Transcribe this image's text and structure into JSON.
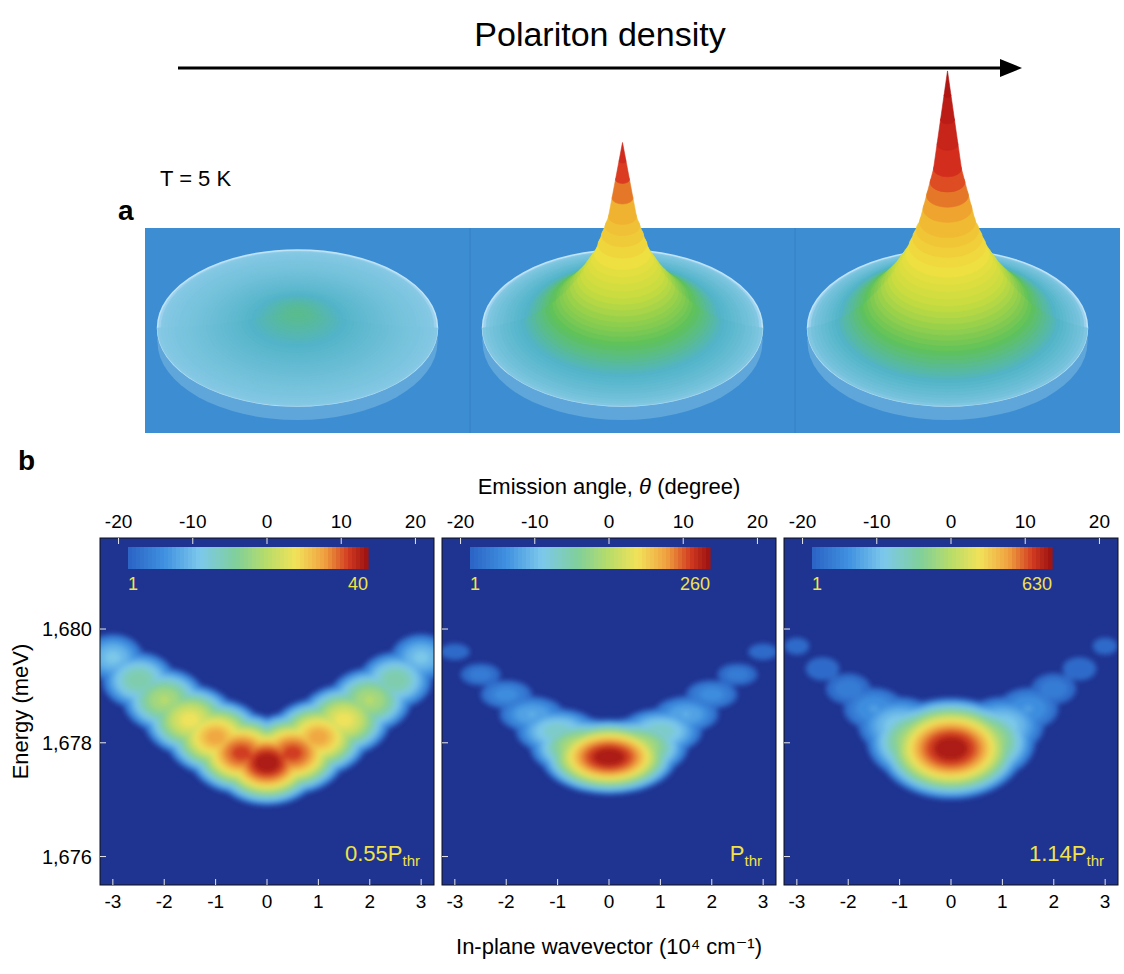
{
  "header": {
    "title": "Polariton density"
  },
  "panels": {
    "a": {
      "label": "a",
      "annotation": "T = 5 K"
    },
    "b": {
      "label": "b",
      "xlabel": "In-plane wavevector (10⁴ cm⁻¹)",
      "x2label": "Emission angle, θ (degree)",
      "ylabel": "Energy (meV)"
    }
  },
  "chart_data": [
    {
      "type": "surface",
      "x": [
        0,
        0.1,
        0.2,
        0.3,
        0.4,
        0.5,
        0.6,
        0.7,
        0.8,
        0.9,
        1
      ],
      "xlim": [
        0,
        1
      ],
      "zlim": [
        0,
        100
      ],
      "series": [
        {
          "values": [
            6,
            5.5,
            4.5,
            3.5,
            2.5,
            1.8,
            1.2,
            0.7,
            0.4,
            0.2,
            0
          ]
        },
        {
          "values": [
            70,
            42,
            28,
            20,
            14,
            9.5,
            6,
            3.5,
            2,
            0.8,
            0
          ]
        },
        {
          "values": [
            97,
            60,
            40,
            28,
            20,
            14,
            9,
            5.5,
            3,
            1.2,
            0
          ]
        }
      ]
    },
    {
      "type": "heatmap",
      "x": [
        -3,
        -2.5,
        -2,
        -1.5,
        -1,
        -0.5,
        0,
        0.5,
        1,
        1.5,
        2,
        2.5,
        3
      ],
      "values": [
        1679.5,
        1679.1,
        1678.75,
        1678.4,
        1678.1,
        1677.82,
        1677.65,
        1677.82,
        1678.1,
        1678.4,
        1678.75,
        1679.1,
        1679.5
      ],
      "intensity": [
        3,
        5,
        8,
        13,
        20,
        30,
        40,
        30,
        20,
        13,
        8,
        5,
        3
      ],
      "energy_width": 0.28,
      "xlim": [
        -3.25,
        3.25
      ],
      "xticks": [
        -3,
        -2,
        -1,
        0,
        1,
        2,
        3
      ],
      "x2lim": [
        -22.5,
        22.5
      ],
      "x2ticks": [
        -20,
        -10,
        0,
        10,
        20
      ],
      "ylim": [
        1675.5,
        1681.6
      ],
      "yticks": [
        {
          "value": 1676,
          "label": "1,676"
        },
        {
          "value": 1678,
          "label": "1,678"
        },
        {
          "value": 1680,
          "label": "1,680"
        }
      ],
      "colorbar": {
        "range": [
          1,
          40
        ],
        "ticks": [
          1,
          40
        ]
      },
      "annotation": {
        "text": "0.55P",
        "subscript": "thr"
      }
    },
    {
      "type": "heatmap",
      "x": [
        -3,
        -2.5,
        -2,
        -1.5,
        -1,
        -0.5,
        0,
        0.5,
        1,
        1.5,
        2,
        2.5,
        3
      ],
      "values": [
        1679.6,
        1679.2,
        1678.85,
        1678.5,
        1678.2,
        1677.92,
        1677.75,
        1677.92,
        1678.2,
        1678.5,
        1678.85,
        1679.2,
        1679.6
      ],
      "intensity": [
        1.3,
        1.6,
        2.2,
        3.5,
        8,
        30,
        260,
        30,
        8,
        3.5,
        2.2,
        1.6,
        1.3
      ],
      "energy_width": 0.2,
      "xlim": [
        -3.25,
        3.25
      ],
      "xticks": [
        -3,
        -2,
        -1,
        0,
        1,
        2,
        3
      ],
      "x2lim": [
        -22.5,
        22.5
      ],
      "x2ticks": [
        -20,
        -10,
        0,
        10,
        20
      ],
      "ylim": [
        1675.5,
        1681.6
      ],
      "yticks": [
        {
          "value": 1676,
          "label": "1,676"
        },
        {
          "value": 1678,
          "label": "1,678"
        },
        {
          "value": 1680,
          "label": "1,680"
        }
      ],
      "tick_labels": "x",
      "colorbar": {
        "range": [
          1,
          260
        ],
        "ticks": [
          1,
          260
        ]
      },
      "annotation": {
        "text": "P",
        "subscript": "thr"
      }
    },
    {
      "type": "heatmap",
      "x": [
        -3,
        -2.5,
        -2,
        -1.5,
        -1,
        -0.5,
        0,
        0.5,
        1,
        1.5,
        2,
        2.5,
        3
      ],
      "values": [
        1679.7,
        1679.3,
        1678.95,
        1678.6,
        1678.3,
        1678.02,
        1677.9,
        1678.02,
        1678.3,
        1678.6,
        1678.95,
        1679.3,
        1679.7
      ],
      "intensity": [
        1.2,
        1.4,
        1.8,
        3,
        8,
        60,
        630,
        60,
        8,
        3,
        1.8,
        1.4,
        1.2
      ],
      "energy_width": 0.25,
      "xlim": [
        -3.25,
        3.25
      ],
      "xticks": [
        -3,
        -2,
        -1,
        0,
        1,
        2,
        3
      ],
      "x2lim": [
        -22.5,
        22.5
      ],
      "x2ticks": [
        -20,
        -10,
        0,
        10,
        20
      ],
      "ylim": [
        1675.5,
        1681.6
      ],
      "yticks": [
        {
          "value": 1676,
          "label": "1,676"
        },
        {
          "value": 1678,
          "label": "1,678"
        },
        {
          "value": 1680,
          "label": "1,680"
        }
      ],
      "tick_labels": "x",
      "colorbar": {
        "range": [
          1,
          630
        ],
        "ticks": [
          1,
          630
        ]
      },
      "annotation": {
        "text": "1.14P",
        "subscript": "thr"
      }
    }
  ]
}
